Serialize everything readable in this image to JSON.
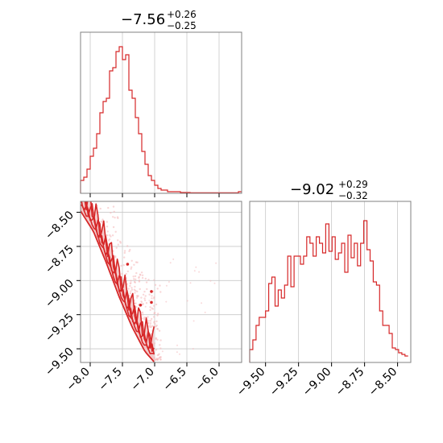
{
  "colors": {
    "series": "#d62728",
    "grid": "#c8c8c8",
    "spine": "#808080",
    "contour_fill": "#f2c5c6"
  },
  "chart_data": [
    {
      "type": "histogram",
      "panel": "top-left",
      "title": {
        "value": "−7.56",
        "plus": "+0.26",
        "minus": "−0.25"
      },
      "xlim": [
        -8.15,
        -5.65
      ],
      "xticks": [
        -8.0,
        -7.5,
        -7.0,
        -6.5,
        -6.0
      ],
      "grid": true,
      "bin_width": 0.05,
      "x_start": -8.15,
      "counts": [
        0.08,
        0.1,
        0.15,
        0.23,
        0.28,
        0.37,
        0.5,
        0.57,
        0.59,
        0.76,
        0.78,
        0.88,
        0.91,
        0.83,
        0.86,
        0.64,
        0.59,
        0.47,
        0.37,
        0.26,
        0.18,
        0.11,
        0.08,
        0.05,
        0.03,
        0.02,
        0.02,
        0.01,
        0.01,
        0.01,
        0.01,
        0.005,
        0.005,
        0.005,
        0.003,
        0.003,
        0.003,
        0.003,
        0.003,
        0.003,
        0.003,
        0.003,
        0.003,
        0.003,
        0.003,
        0.003,
        0.003,
        0.003,
        0.003,
        0.01
      ],
      "ymax": 1.0
    },
    {
      "type": "scatter",
      "panel": "bottom-left",
      "xlim": [
        -8.15,
        -5.65
      ],
      "ylim": [
        -9.6,
        -8.42
      ],
      "xticks": [
        -8.0,
        -7.5,
        -7.0,
        -6.5,
        -6.0
      ],
      "xtick_labels": [
        "−8.0",
        "−7.5",
        "−7.0",
        "−6.5",
        "−6.0"
      ],
      "yticks": [
        -8.5,
        -8.75,
        -9.0,
        -9.25,
        -9.5
      ],
      "ytick_labels": [
        "−8.50",
        "−8.75",
        "−9.00",
        "−9.25",
        "−9.50"
      ],
      "grid": true,
      "ridge_x": [
        -8.15,
        -7.95,
        -7.75,
        -7.55,
        -7.35,
        -7.15,
        -7.0
      ],
      "ridge_y": [
        -8.47,
        -8.62,
        -8.85,
        -9.1,
        -9.32,
        -9.5,
        -9.58
      ],
      "contour_offsets": [
        0.04,
        0.1,
        0.17,
        0.24
      ],
      "outlier_points": [
        [
          -7.05,
          -9.08
        ],
        [
          -7.05,
          -9.16
        ],
        [
          -7.22,
          -9.18
        ],
        [
          -7.42,
          -8.88
        ]
      ]
    },
    {
      "type": "histogram",
      "panel": "bottom-right",
      "title": {
        "value": "−9.02",
        "plus": "+0.29",
        "minus": "−0.32"
      },
      "xlim": [
        -9.62,
        -8.4
      ],
      "xticks": [
        -9.5,
        -9.25,
        -9.0,
        -8.75,
        -8.5
      ],
      "xtick_labels": [
        "−9.50",
        "−9.25",
        "−9.00",
        "−8.75",
        "−8.50"
      ],
      "grid": true,
      "bin_width": 0.024,
      "x_start": -9.62,
      "counts": [
        0.08,
        0.14,
        0.23,
        0.28,
        0.28,
        0.32,
        0.49,
        0.53,
        0.35,
        0.45,
        0.4,
        0.48,
        0.66,
        0.47,
        0.66,
        0.66,
        0.61,
        0.66,
        0.78,
        0.74,
        0.66,
        0.78,
        0.74,
        0.68,
        0.86,
        0.69,
        0.78,
        0.64,
        0.68,
        0.74,
        0.56,
        0.79,
        0.65,
        0.74,
        0.6,
        0.74,
        0.88,
        0.7,
        0.63,
        0.5,
        0.48,
        0.32,
        0.23,
        0.23,
        0.18,
        0.09,
        0.08,
        0.06,
        0.05,
        0.04
      ],
      "ymax": 1.0
    }
  ]
}
